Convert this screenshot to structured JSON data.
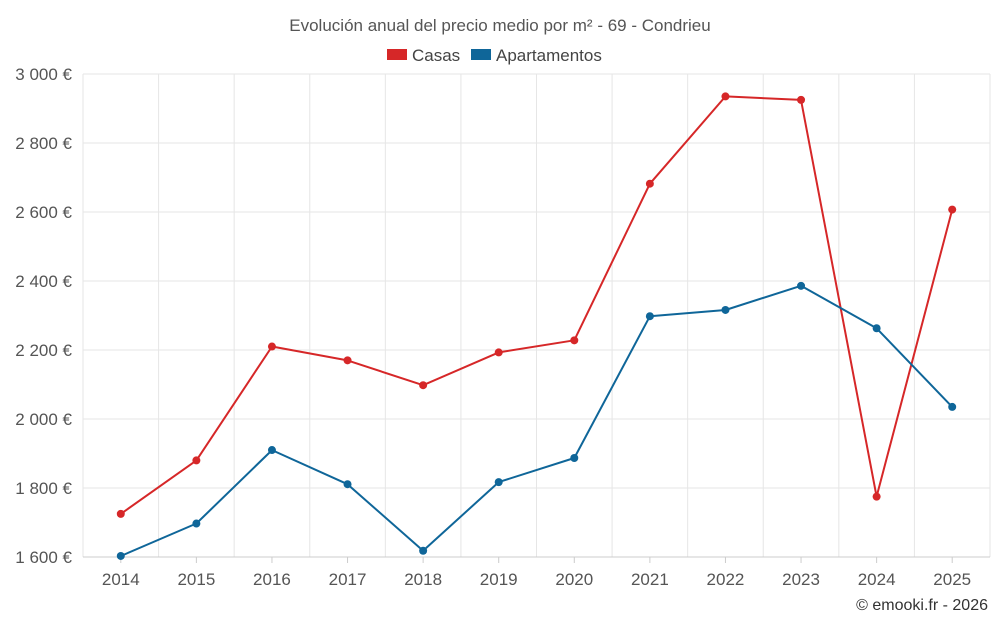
{
  "chart_data": {
    "type": "line",
    "title": "Evolución anual del precio medio por m² - 69 - Condrieu",
    "xlabel": "",
    "ylabel": "",
    "categories": [
      "2014",
      "2015",
      "2016",
      "2017",
      "2018",
      "2019",
      "2020",
      "2021",
      "2022",
      "2023",
      "2024",
      "2025"
    ],
    "ylim": [
      1600,
      3000
    ],
    "yticks": [
      1600,
      1800,
      2000,
      2200,
      2400,
      2600,
      2800,
      3000
    ],
    "ytick_labels": [
      "1 600 €",
      "1 800 €",
      "2 000 €",
      "2 200 €",
      "2 400 €",
      "2 600 €",
      "2 800 €",
      "3 000 €"
    ],
    "legend_position": "top-center",
    "grid": true,
    "series": [
      {
        "name": "Casas",
        "color": "#d62728",
        "values": [
          1725,
          1880,
          2210,
          2170,
          2098,
          2193,
          2228,
          2682,
          2935,
          2925,
          1775,
          2607
        ]
      },
      {
        "name": "Apartamentos",
        "color": "#0f6699",
        "values": [
          1603,
          1697,
          1910,
          1811,
          1618,
          1817,
          1887,
          2298,
          2316,
          2386,
          2263,
          2035
        ]
      }
    ],
    "credit": "© emooki.fr - 2026"
  }
}
